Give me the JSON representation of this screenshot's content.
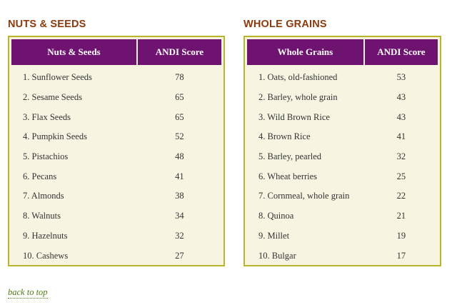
{
  "nuts_seeds": {
    "heading": "NUTS & SEEDS",
    "columns": [
      "Nuts & Seeds",
      "ANDI Score"
    ],
    "rows": [
      {
        "name": "1. Sunflower Seeds",
        "score": "78"
      },
      {
        "name": "2. Sesame Seeds",
        "score": "65"
      },
      {
        "name": "3. Flax Seeds",
        "score": "65"
      },
      {
        "name": "4. Pumpkin Seeds",
        "score": "52"
      },
      {
        "name": "5. Pistachios",
        "score": "48"
      },
      {
        "name": "6. Pecans",
        "score": "41"
      },
      {
        "name": "7. Almonds",
        "score": "38"
      },
      {
        "name": "8. Walnuts",
        "score": "34"
      },
      {
        "name": "9. Hazelnuts",
        "score": "32"
      },
      {
        "name": "10. Cashews",
        "score": "27"
      }
    ]
  },
  "whole_grains": {
    "heading": "WHOLE GRAINS",
    "columns": [
      "Whole Grains",
      "ANDI Score"
    ],
    "rows": [
      {
        "name": "1. Oats, old-fashioned",
        "score": "53"
      },
      {
        "name": "2. Barley, whole grain",
        "score": "43"
      },
      {
        "name": "3. Wild Brown Rice",
        "score": "43"
      },
      {
        "name": "4. Brown Rice",
        "score": "41"
      },
      {
        "name": "5. Barley, pearled",
        "score": "32"
      },
      {
        "name": "6. Wheat berries",
        "score": "25"
      },
      {
        "name": "7. Cornmeal, whole grain",
        "score": "22"
      },
      {
        "name": "8. Quinoa",
        "score": "21"
      },
      {
        "name": "9. Millet",
        "score": "19"
      },
      {
        "name": "10. Bulgar",
        "score": "17"
      }
    ]
  },
  "back_to_top": "back to top",
  "colors": {
    "heading": "#8b3a0f",
    "table_header_bg": "#6e1470",
    "table_border": "#b9b42a",
    "table_bg": "#f7f4e2",
    "link": "#4f7a12"
  }
}
